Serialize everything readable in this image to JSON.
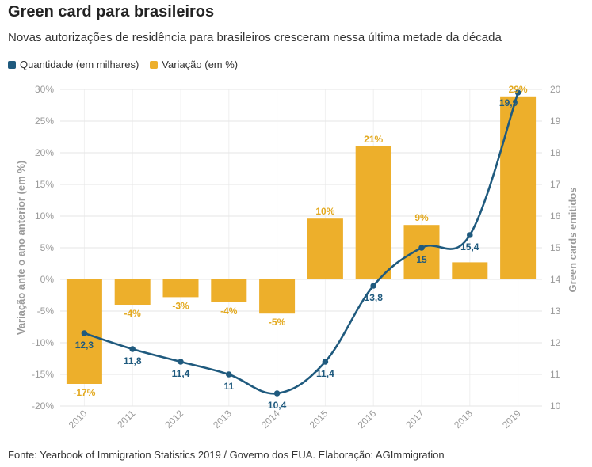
{
  "title": "Green card para brasileiros",
  "subtitle": "Novas autorizações de residência para brasileiros cresceram nessa última metade da década",
  "legend": {
    "quantidade": "Quantidade (em milhares)",
    "variacao": "Variação (em %)"
  },
  "source": "Fonte: Yearbook of Immigration Statistics 2019 / Governo dos EUA. Elaboração: AGImmigration",
  "colors": {
    "bar": "#EDAF2B",
    "line": "#1F5A7E",
    "bar_label": "#E3A91F",
    "line_label": "#1F5A7E"
  },
  "chart_data": {
    "type": "bar+line",
    "categories": [
      "2010",
      "2011",
      "2012",
      "2013",
      "2014",
      "2015",
      "2016",
      "2017",
      "2018",
      "2019"
    ],
    "series": [
      {
        "name": "Variação (em %)",
        "type": "bar",
        "axis": "left",
        "values": [
          -16.5,
          -4,
          -2.8,
          -3.6,
          -5.4,
          9.6,
          21,
          8.6,
          2.7,
          28.9
        ],
        "labels": [
          "-17%",
          "-4%",
          "-3%",
          "-4%",
          "-5%",
          "10%",
          "21%",
          "9%",
          "",
          "29%"
        ]
      },
      {
        "name": "Quantidade (em milhares)",
        "type": "line",
        "axis": "right",
        "values": [
          12.3,
          11.8,
          11.4,
          11,
          10.4,
          11.4,
          13.8,
          15,
          15.4,
          19.9
        ],
        "labels": [
          "12,3",
          "11,8",
          "11,4",
          "11",
          "10,4",
          "11,4",
          "13,8",
          "15",
          "15,4",
          "19,9"
        ]
      }
    ],
    "y_left": {
      "label": "Variação ante o ano anterior (em %)",
      "range": [
        -20,
        30
      ],
      "ticks": [
        "-20%",
        "-15%",
        "-10%",
        "-5%",
        "0%",
        "5%",
        "10%",
        "15%",
        "20%",
        "25%",
        "30%"
      ]
    },
    "y_right": {
      "label": "Green cards emitidos",
      "range": [
        10,
        20
      ],
      "ticks": [
        "10",
        "11",
        "12",
        "13",
        "14",
        "15",
        "16",
        "17",
        "18",
        "19",
        "20"
      ]
    }
  }
}
